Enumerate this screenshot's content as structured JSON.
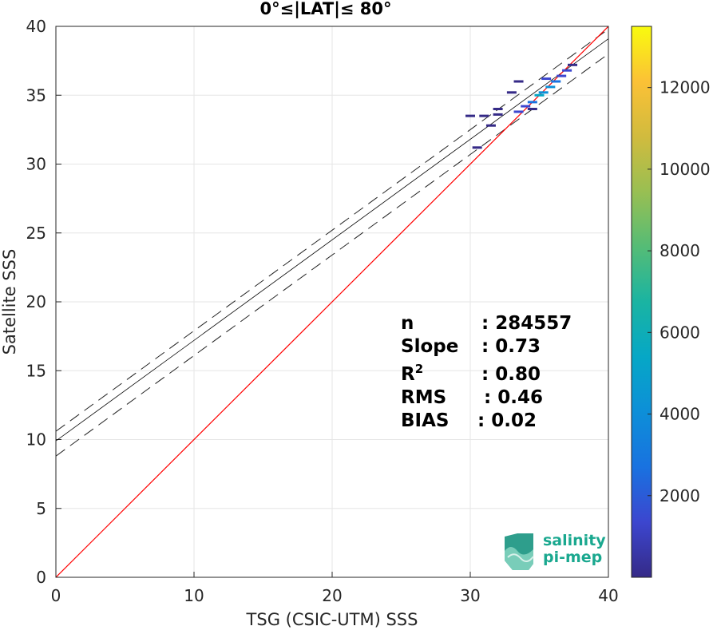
{
  "chart_data": {
    "type": "scatter",
    "title": "0°≤|LAT|≤ 80°",
    "xlabel": "TSG (CSIC-UTM) SSS",
    "ylabel": "Satellite SSS",
    "xlim": [
      0,
      40
    ],
    "ylim": [
      0,
      40
    ],
    "xticks": [
      0,
      10,
      20,
      30,
      40
    ],
    "yticks": [
      0,
      5,
      10,
      15,
      20,
      25,
      30,
      35,
      40
    ],
    "grid": true,
    "one_to_one_line": {
      "color": "#ff0000",
      "x": [
        0,
        40
      ],
      "y": [
        0,
        40
      ]
    },
    "regression_line": {
      "slope": 0.73,
      "intercept": 9.9,
      "color": "#000000"
    },
    "confidence_lines": [
      {
        "slope": 0.73,
        "intercept": 10.6,
        "style": "dashed"
      },
      {
        "slope": 0.73,
        "intercept": 8.8,
        "style": "dashed"
      }
    ],
    "density_points": [
      {
        "x": 33.5,
        "y": 33.8,
        "count": 800
      },
      {
        "x": 34.0,
        "y": 34.2,
        "count": 1500
      },
      {
        "x": 34.5,
        "y": 34.5,
        "count": 3000
      },
      {
        "x": 35.0,
        "y": 35.0,
        "count": 5000
      },
      {
        "x": 35.3,
        "y": 35.2,
        "count": 4000
      },
      {
        "x": 35.8,
        "y": 35.6,
        "count": 3500
      },
      {
        "x": 36.2,
        "y": 36.0,
        "count": 2500
      },
      {
        "x": 36.6,
        "y": 36.4,
        "count": 1800
      },
      {
        "x": 37.0,
        "y": 36.8,
        "count": 900
      },
      {
        "x": 37.4,
        "y": 37.2,
        "count": 400
      },
      {
        "x": 32.0,
        "y": 33.6,
        "count": 200
      },
      {
        "x": 31.0,
        "y": 33.5,
        "count": 150
      },
      {
        "x": 30.0,
        "y": 33.5,
        "count": 100
      },
      {
        "x": 32.0,
        "y": 34.0,
        "count": 150
      },
      {
        "x": 31.5,
        "y": 32.8,
        "count": 120
      },
      {
        "x": 30.5,
        "y": 31.2,
        "count": 100
      },
      {
        "x": 33.0,
        "y": 35.2,
        "count": 150
      },
      {
        "x": 33.5,
        "y": 36.0,
        "count": 120
      },
      {
        "x": 34.5,
        "y": 34.0,
        "count": 600
      },
      {
        "x": 35.5,
        "y": 36.2,
        "count": 700
      }
    ],
    "colorbar": {
      "colormap": "parula",
      "min": 0,
      "max": 13500,
      "ticks": [
        2000,
        4000,
        6000,
        8000,
        10000,
        12000
      ]
    },
    "stats": [
      {
        "label": "n",
        "value": ": 284557"
      },
      {
        "label": "Slope",
        "value": ": 0.73"
      },
      {
        "label": "R",
        "sup": "2",
        "value": ": 0.80"
      },
      {
        "label": "RMS",
        "value": ": 0.46"
      },
      {
        "label": "BIAS",
        "value": ": 0.02"
      }
    ]
  },
  "logo": {
    "line1": "salinity",
    "line2": "pi-mep"
  }
}
